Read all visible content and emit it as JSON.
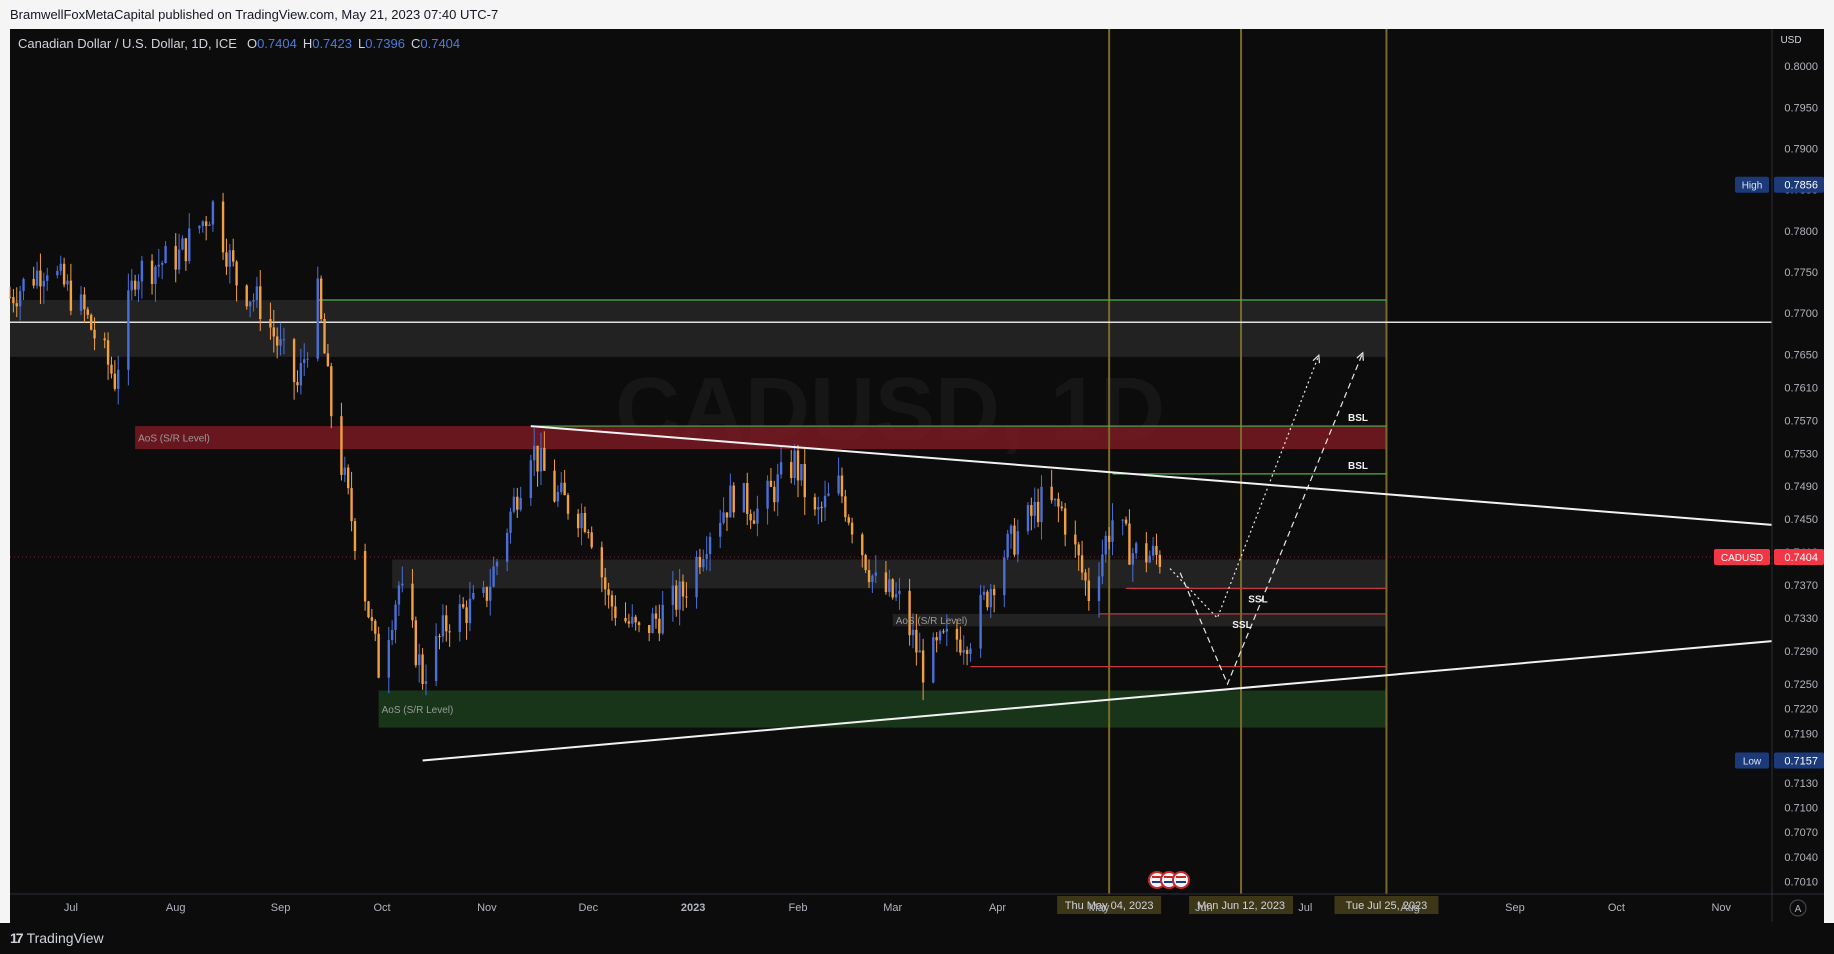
{
  "header": {
    "published_line": "BramwellFoxMetaCapital published on TradingView.com, May 21, 2023 07:40 UTC-7"
  },
  "legend": {
    "symbol": "Canadian Dollar / U.S. Dollar, 1D, ICE",
    "o_label": "O",
    "o_value": "0.7404",
    "h_label": "H",
    "h_value": "0.7423",
    "l_label": "L",
    "l_value": "0.7396",
    "c_label": "C",
    "c_value": "0.7404"
  },
  "footer": {
    "brand": "TradingView",
    "auto_label": "A"
  },
  "colors": {
    "background": "#0c0c0c",
    "up_candle": "#4a6fd6",
    "down_candle": "#f0a040",
    "resistance_zone": "#8b1c24",
    "support_zone": "#1e4420",
    "gray_zone": "#2a2a2a",
    "vertical_lines": "#7a6a28",
    "price_badge": "#f23645",
    "high_low_badge": "#1c3a7a"
  },
  "chart_data": {
    "type": "candlestick",
    "title": "",
    "watermark": "CADUSD, 1D",
    "currency_label": "USD",
    "ylim": [
      0.6995,
      0.8045
    ],
    "y_ticks": [
      "0.8000",
      "0.7950",
      "0.7900",
      "0.7850",
      "0.7800",
      "0.7750",
      "0.7700",
      "0.7650",
      "0.7610",
      "0.7570",
      "0.7530",
      "0.7490",
      "0.7450",
      "0.7410",
      "0.7370",
      "0.7330",
      "0.7290",
      "0.7250",
      "0.7220",
      "0.7190",
      "0.7160",
      "0.7130",
      "0.7100",
      "0.7070",
      "0.7040",
      "0.7010"
    ],
    "x_ticks": [
      {
        "label": "Jul",
        "date": "2022-07-01"
      },
      {
        "label": "Aug",
        "date": "2022-08-01"
      },
      {
        "label": "Sep",
        "date": "2022-09-01"
      },
      {
        "label": "Oct",
        "date": "2022-10-01"
      },
      {
        "label": "Nov",
        "date": "2022-11-01"
      },
      {
        "label": "Dec",
        "date": "2022-12-01"
      },
      {
        "label": "2023",
        "date": "2023-01-01"
      },
      {
        "label": "Feb",
        "date": "2023-02-01"
      },
      {
        "label": "Mar",
        "date": "2023-03-01"
      },
      {
        "label": "Apr",
        "date": "2023-04-01"
      },
      {
        "label": "May",
        "date": "2023-05-01"
      },
      {
        "label": "Jun",
        "date": "2023-06-01"
      },
      {
        "label": "Jul",
        "date": "2023-07-01"
      },
      {
        "label": "Aug",
        "date": "2023-08-01"
      },
      {
        "label": "Sep",
        "date": "2023-09-01"
      },
      {
        "label": "Oct",
        "date": "2023-10-01"
      },
      {
        "label": "Nov",
        "date": "2023-11-01"
      }
    ],
    "price_path": [
      {
        "date": "2022-06-13",
        "close": 0.772
      },
      {
        "date": "2022-06-24",
        "close": 0.776
      },
      {
        "date": "2022-07-05",
        "close": 0.77
      },
      {
        "date": "2022-07-14",
        "close": 0.762
      },
      {
        "date": "2022-07-20",
        "close": 0.775
      },
      {
        "date": "2022-08-02",
        "close": 0.777
      },
      {
        "date": "2022-08-12",
        "close": 0.783
      },
      {
        "date": "2022-08-19",
        "close": 0.774
      },
      {
        "date": "2022-08-26",
        "close": 0.771
      },
      {
        "date": "2022-09-06",
        "close": 0.761
      },
      {
        "date": "2022-09-12",
        "close": 0.772
      },
      {
        "date": "2022-09-16",
        "close": 0.758
      },
      {
        "date": "2022-09-23",
        "close": 0.743
      },
      {
        "date": "2022-09-30",
        "close": 0.727
      },
      {
        "date": "2022-10-06",
        "close": 0.737
      },
      {
        "date": "2022-10-13",
        "close": 0.726
      },
      {
        "date": "2022-10-21",
        "close": 0.733
      },
      {
        "date": "2022-10-31",
        "close": 0.735
      },
      {
        "date": "2022-11-04",
        "close": 0.74
      },
      {
        "date": "2022-11-14",
        "close": 0.754
      },
      {
        "date": "2022-11-21",
        "close": 0.748
      },
      {
        "date": "2022-12-01",
        "close": 0.745
      },
      {
        "date": "2022-12-07",
        "close": 0.735
      },
      {
        "date": "2022-12-16",
        "close": 0.731
      },
      {
        "date": "2022-12-29",
        "close": 0.736
      },
      {
        "date": "2023-01-06",
        "close": 0.744
      },
      {
        "date": "2023-01-13",
        "close": 0.748
      },
      {
        "date": "2023-01-20",
        "close": 0.746
      },
      {
        "date": "2023-01-31",
        "close": 0.752
      },
      {
        "date": "2023-02-06",
        "close": 0.745
      },
      {
        "date": "2023-02-13",
        "close": 0.749
      },
      {
        "date": "2023-02-24",
        "close": 0.737
      },
      {
        "date": "2023-03-03",
        "close": 0.735
      },
      {
        "date": "2023-03-10",
        "close": 0.727
      },
      {
        "date": "2023-03-16",
        "close": 0.73
      },
      {
        "date": "2023-03-24",
        "close": 0.731
      },
      {
        "date": "2023-04-03",
        "close": 0.741
      },
      {
        "date": "2023-04-14",
        "close": 0.747
      },
      {
        "date": "2023-04-20",
        "close": 0.746
      },
      {
        "date": "2023-04-28",
        "close": 0.736
      },
      {
        "date": "2023-05-05",
        "close": 0.745
      },
      {
        "date": "2023-05-11",
        "close": 0.741
      },
      {
        "date": "2023-05-19",
        "close": 0.7404
      }
    ],
    "last_price": {
      "label": "CADUSD",
      "value": "0.7404"
    },
    "high": {
      "label": "High",
      "value": "0.7856"
    },
    "low": {
      "label": "Low",
      "value": "0.7157"
    },
    "annotations": {
      "zones": [
        {
          "name": "gray-zone-upper",
          "from": "2022-06-13",
          "to": "2023-07-25",
          "y_low": 0.7647,
          "y_high": 0.7716,
          "color": "gray"
        },
        {
          "name": "resistance-zone",
          "label": "AoS (S/R Level)",
          "from": "2022-07-20",
          "to": "2023-07-25",
          "y_low": 0.7535,
          "y_high": 0.7563,
          "color": "red"
        },
        {
          "name": "gray-zone-middle",
          "from": "2022-10-04",
          "to": "2023-07-25",
          "y_low": 0.7366,
          "y_high": 0.7401,
          "color": "gray"
        },
        {
          "name": "gray-zone-lower",
          "label": "AoS (S/R Level)",
          "from": "2023-03-01",
          "to": "2023-07-25",
          "y_low": 0.732,
          "y_high": 0.7335,
          "color": "gray"
        },
        {
          "name": "support-zone",
          "label": "AoS (S/R Level)",
          "from": "2022-09-30",
          "to": "2023-07-25",
          "y_low": 0.7197,
          "y_high": 0.7242,
          "color": "green"
        }
      ],
      "levels": [
        {
          "name": "green-line-top",
          "from": "2022-09-12",
          "to": "2023-07-25",
          "y": 0.7716,
          "color": "green"
        },
        {
          "name": "white-horizontal",
          "from": "2022-06-13",
          "to": "2023-11-16",
          "y": 0.7689,
          "color": "white"
        },
        {
          "name": "bsl-upper",
          "label": "BSL",
          "from": "2022-11-14",
          "to": "2023-07-25",
          "y": 0.7563,
          "color": "green"
        },
        {
          "name": "bsl-lower",
          "label": "BSL",
          "from": "2023-05-05",
          "to": "2023-07-25",
          "y": 0.7505,
          "color": "green"
        },
        {
          "name": "ssl-upper",
          "label": "SSL",
          "from": "2023-05-09",
          "to": "2023-07-25",
          "y": 0.7366,
          "color": "red"
        },
        {
          "name": "ssl-lower",
          "label": "SSL",
          "from": "2023-05-01",
          "to": "2023-07-25",
          "y": 0.7335,
          "color": "red"
        },
        {
          "name": "red-line-bottom",
          "from": "2023-03-24",
          "to": "2023-07-25",
          "y": 0.7271,
          "color": "red"
        }
      ],
      "trendlines": [
        {
          "name": "descending-trendline",
          "x1": "2022-11-14",
          "y1": 0.7563,
          "x2": "2023-11-16",
          "y2": 0.7443
        },
        {
          "name": "ascending-trendline",
          "x1": "2022-10-13",
          "y1": 0.7157,
          "x2": "2023-11-16",
          "y2": 0.7302
        }
      ],
      "projections": [
        {
          "name": "projection-dotted",
          "style": "dotted",
          "points": [
            {
              "date": "2023-05-22",
              "y": 0.739
            },
            {
              "date": "2023-06-05",
              "y": 0.733
            },
            {
              "date": "2023-07-05",
              "y": 0.7649
            }
          ]
        },
        {
          "name": "projection-dashed",
          "style": "dashed",
          "points": [
            {
              "date": "2023-05-25",
              "y": 0.7385
            },
            {
              "date": "2023-06-08",
              "y": 0.725
            },
            {
              "date": "2023-07-18",
              "y": 0.7652
            }
          ]
        }
      ],
      "vertical_lines": [
        {
          "name": "vline-may-04",
          "date": "2023-05-04",
          "label": "Thu May 04, 2023"
        },
        {
          "name": "vline-jun-12",
          "date": "2023-06-12",
          "label": "Mon Jun 12, 2023"
        },
        {
          "name": "vline-jul-25",
          "date": "2023-07-25",
          "label": "Tue Jul 25, 2023"
        }
      ]
    }
  }
}
